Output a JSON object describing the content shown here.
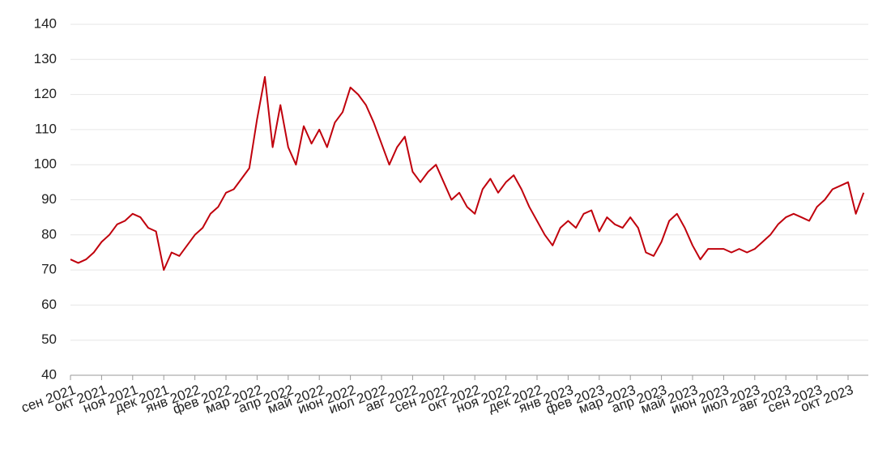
{
  "chart_data": {
    "type": "line",
    "color": "#c0000c",
    "grid": true,
    "ylim": [
      40,
      140
    ],
    "yticks": [
      40,
      50,
      60,
      70,
      80,
      90,
      100,
      110,
      120,
      130,
      140
    ],
    "categories": [
      "сен 2021",
      null,
      null,
      null,
      "окт 2021",
      null,
      null,
      null,
      "ноя 2021",
      null,
      null,
      null,
      "дек 2021",
      null,
      null,
      null,
      "янв 2022",
      null,
      null,
      null,
      "фев 2022",
      null,
      null,
      null,
      "мар 2022",
      null,
      null,
      null,
      "апр 2022",
      null,
      null,
      null,
      "май 2022",
      null,
      null,
      null,
      "июн 2022",
      null,
      null,
      null,
      "июл 2022",
      null,
      null,
      null,
      "авг 2022",
      null,
      null,
      null,
      "сен 2022",
      null,
      null,
      null,
      "окт 2022",
      null,
      null,
      null,
      "ноя 2022",
      null,
      null,
      null,
      "дек 2022",
      null,
      null,
      null,
      "янв 2023",
      null,
      null,
      null,
      "фев 2023",
      null,
      null,
      null,
      "мар 2023",
      null,
      null,
      null,
      "апр 2023",
      null,
      null,
      null,
      "май 2023",
      null,
      null,
      null,
      "июн 2023",
      null,
      null,
      null,
      "июл 2023",
      null,
      null,
      null,
      "авг 2023",
      null,
      null,
      null,
      "сен 2023",
      null,
      null,
      null,
      "окт 2023",
      null,
      null
    ],
    "values": [
      73,
      72,
      73,
      75,
      78,
      80,
      83,
      84,
      86,
      85,
      82,
      81,
      70,
      75,
      74,
      77,
      80,
      82,
      86,
      88,
      92,
      93,
      96,
      99,
      113,
      125,
      105,
      117,
      105,
      100,
      111,
      106,
      110,
      105,
      112,
      115,
      122,
      120,
      117,
      112,
      106,
      100,
      105,
      108,
      98,
      95,
      98,
      100,
      95,
      90,
      92,
      88,
      86,
      93,
      96,
      92,
      95,
      97,
      93,
      88,
      84,
      80,
      77,
      82,
      84,
      82,
      86,
      87,
      81,
      85,
      83,
      82,
      85,
      82,
      75,
      74,
      78,
      84,
      86,
      82,
      77,
      73,
      76,
      76,
      76,
      75,
      76,
      75,
      76,
      78,
      80,
      83,
      85,
      86,
      85,
      84,
      88,
      90,
      93,
      94,
      95,
      86,
      92
    ]
  }
}
